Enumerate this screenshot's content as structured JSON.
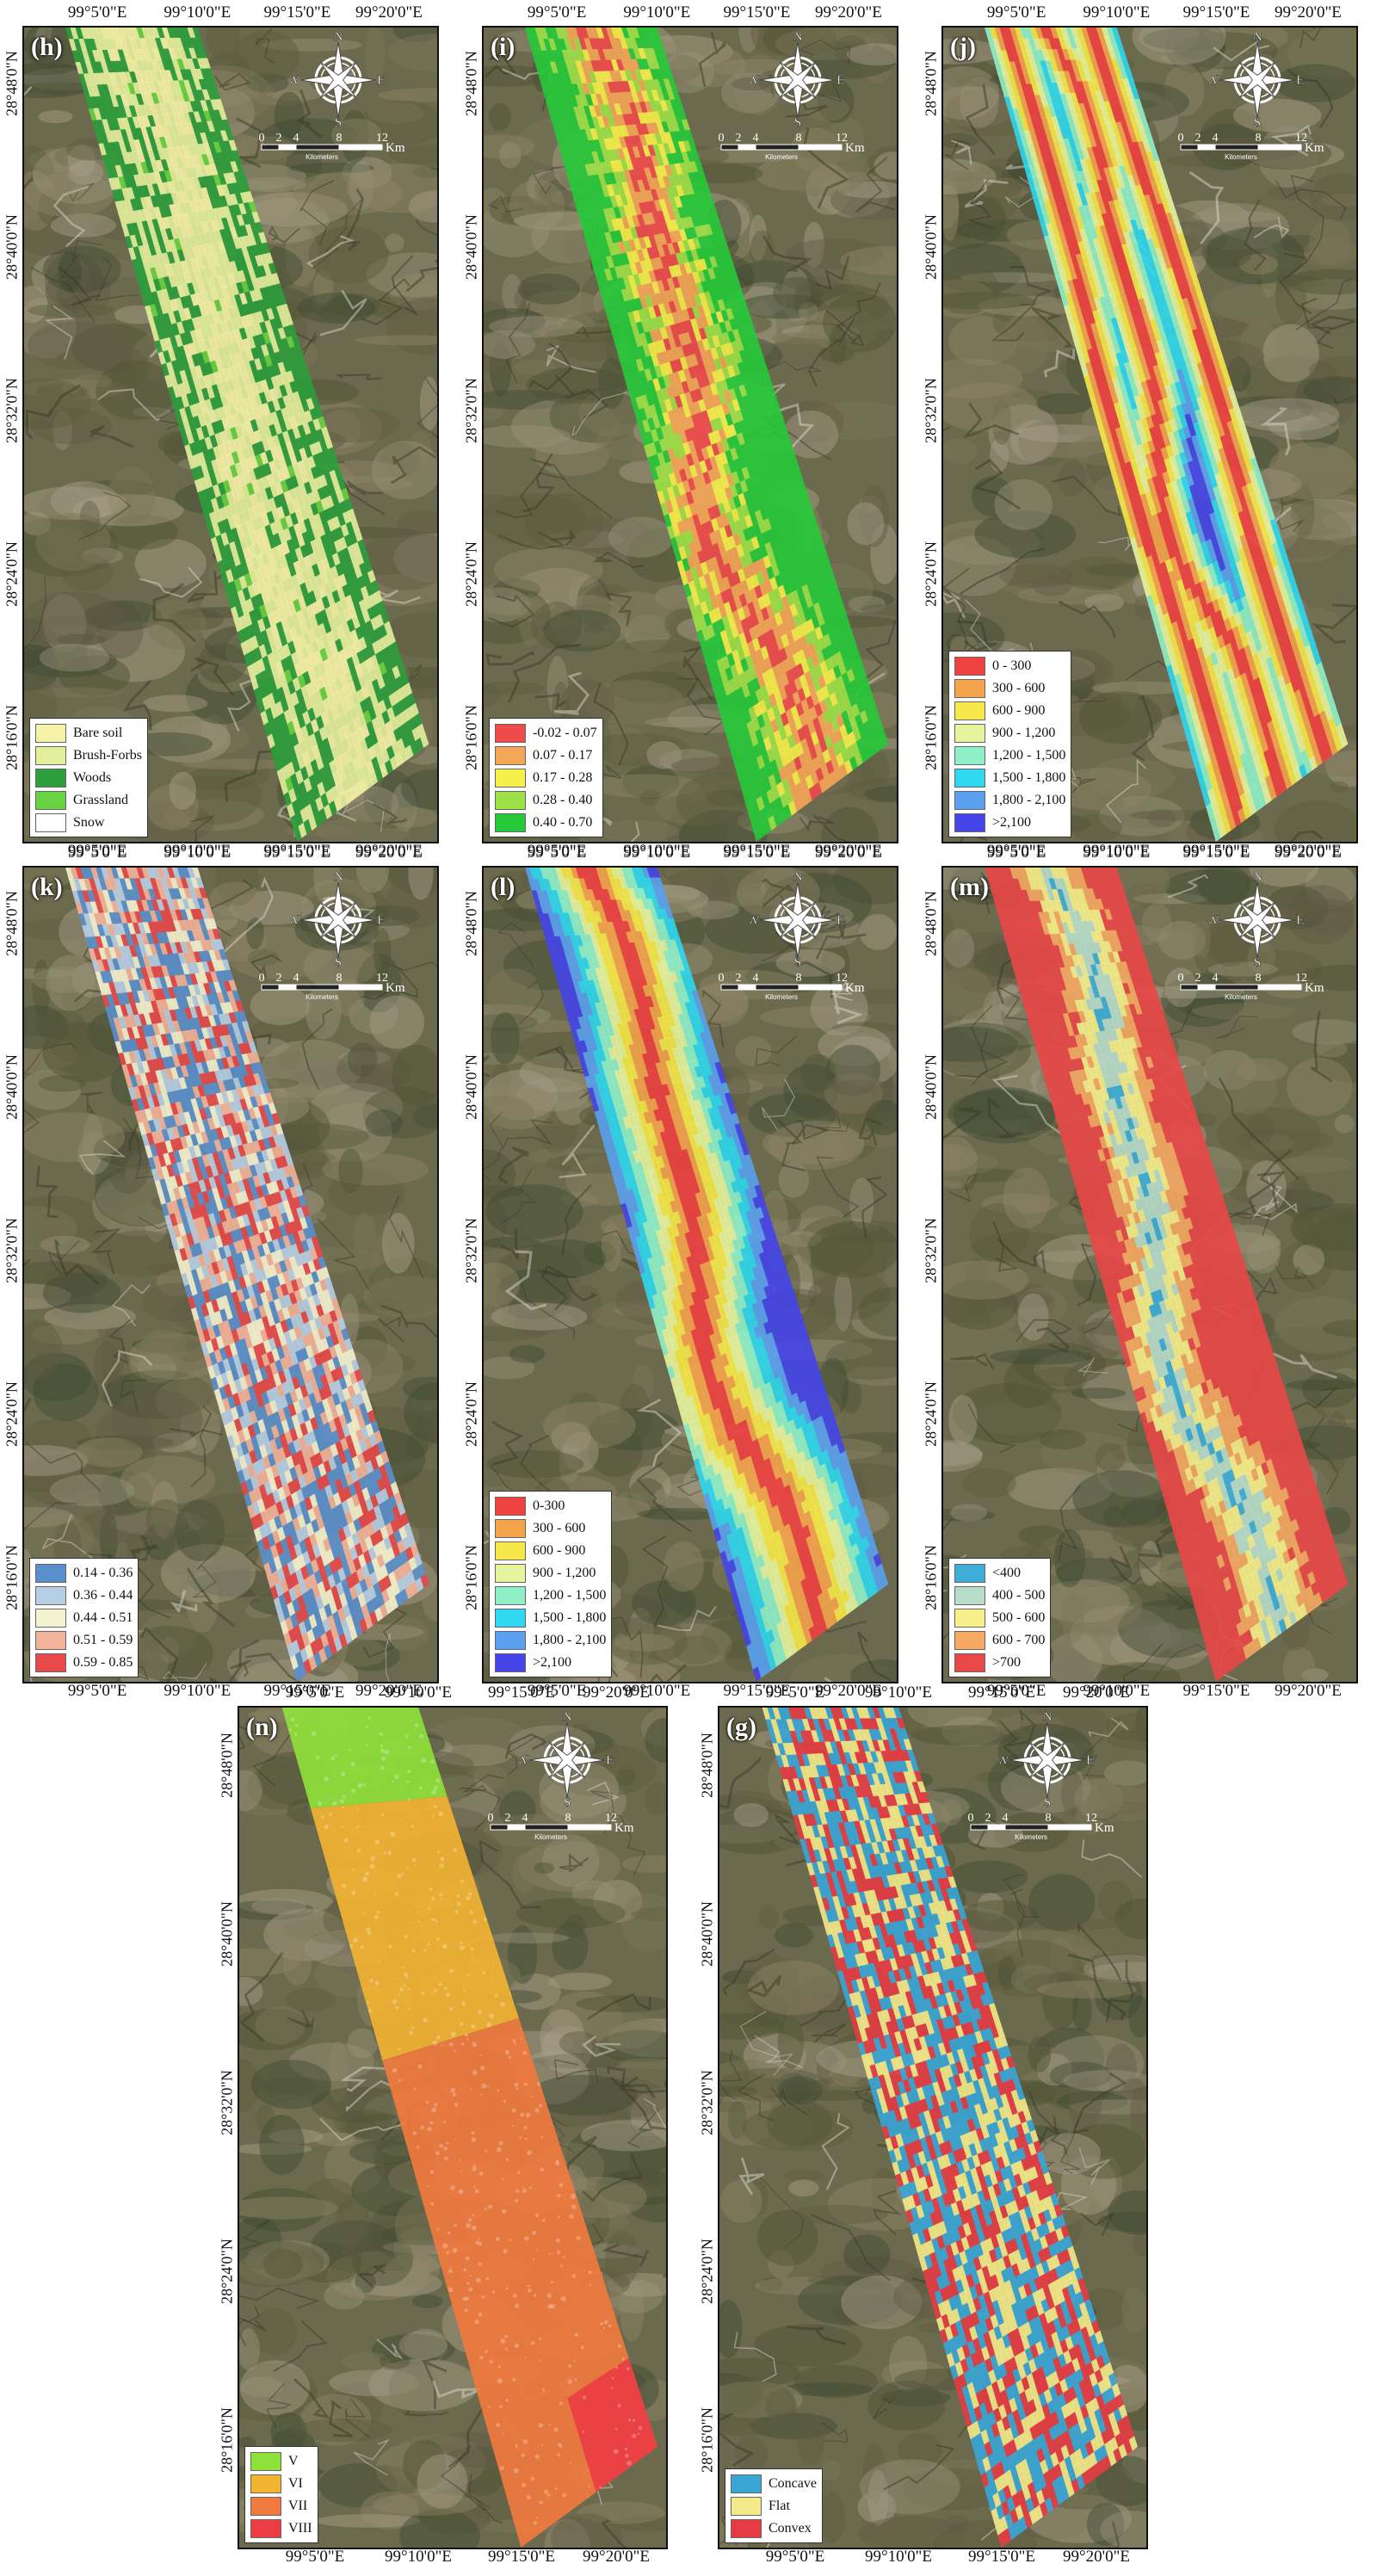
{
  "panels": [
    {
      "id": "h",
      "label": "(h)",
      "top_lon": [
        "99°5'0\"E",
        "99°10'0\"E",
        "99°15'0\"E",
        "99°20'0\"E"
      ],
      "bottom_lon": [
        "99°5'0\"E",
        "99°10'0\"E",
        "99°15'0\"E",
        "99°20'0\"E"
      ],
      "lat": [
        "28°48'0\"N",
        "28°40'0\"N",
        "28°32'0\"N",
        "28°24'0\"N",
        "28°16'0\"N"
      ],
      "legend": [
        {
          "label": "Bare soil",
          "color": "#f6f2a8"
        },
        {
          "label": "Brush-Forbs",
          "color": "#e3ef9c"
        },
        {
          "label": "Woods",
          "color": "#2e9e3c"
        },
        {
          "label": "Grassland",
          "color": "#69d241"
        },
        {
          "label": "Snow",
          "color": "#ffffff"
        }
      ]
    },
    {
      "id": "i",
      "label": "(i)",
      "top_lon": [
        "99°5'0\"E",
        "99°10'0\"E",
        "99°15'0\"E",
        "99°20'0\"E"
      ],
      "bottom_lon": [
        "99°5'0\"E",
        "99°10'0\"E",
        "99°15'0\"E",
        "99°20'0\"E"
      ],
      "lat": [
        "28°48'0\"N",
        "28°40'0\"N",
        "28°32'0\"N",
        "28°24'0\"N",
        "28°16'0\"N"
      ],
      "legend": [
        {
          "label": "-0.02 - 0.07",
          "color": "#ef4b4b"
        },
        {
          "label": "0.07 - 0.17",
          "color": "#f4a657"
        },
        {
          "label": "0.17 - 0.28",
          "color": "#f7ef4a"
        },
        {
          "label": "0.28 - 0.40",
          "color": "#9ee048"
        },
        {
          "label": "0.40 - 0.70",
          "color": "#27c93a"
        }
      ]
    },
    {
      "id": "j",
      "label": "(j)",
      "top_lon": [
        "99°5'0\"E",
        "99°10'0\"E",
        "99°15'0\"E",
        "99°20'0\"E"
      ],
      "bottom_lon": [
        "99°5'0\"E",
        "99°10'0\"E",
        "99°15'0\"E",
        "99°20'0\"E"
      ],
      "lat": [
        "28°48'0\"N",
        "28°40'0\"N",
        "28°32'0\"N",
        "28°24'0\"N",
        "28°16'0\"N"
      ],
      "legend": [
        {
          "label": "0 - 300",
          "color": "#ee4242"
        },
        {
          "label": "300 - 600",
          "color": "#f4a34c"
        },
        {
          "label": "600 - 900",
          "color": "#f6e84a"
        },
        {
          "label": "900 - 1,200",
          "color": "#e6f49e"
        },
        {
          "label": "1,200 - 1,500",
          "color": "#8ff0c8"
        },
        {
          "label": "1,500 - 1,800",
          "color": "#2fd8ee"
        },
        {
          "label": "1,800 - 2,100",
          "color": "#5aa0ee"
        },
        {
          "label": ">2,100",
          "color": "#4545e8"
        }
      ]
    },
    {
      "id": "k",
      "label": "(k)",
      "top_lon": [
        "99°5'0\"E",
        "99°10'0\"E",
        "99°15'0\"E",
        "99°20'0\"E"
      ],
      "bottom_lon": [
        "99°5'0\"E",
        "99°10'0\"E",
        "99°15'0\"E",
        "99°20'0\"E"
      ],
      "lat": [
        "28°48'0\"N",
        "28°40'0\"N",
        "28°32'0\"N",
        "28°24'0\"N",
        "28°16'0\"N"
      ],
      "legend": [
        {
          "label": "0.14 - 0.36",
          "color": "#5b8fcb"
        },
        {
          "label": "0.36 - 0.44",
          "color": "#b7cfe4"
        },
        {
          "label": "0.44 - 0.51",
          "color": "#f5f2d0"
        },
        {
          "label": "0.51 - 0.59",
          "color": "#f3b39a"
        },
        {
          "label": "0.59 - 0.85",
          "color": "#e64a4a"
        }
      ]
    },
    {
      "id": "l",
      "label": "(l)",
      "top_lon": [
        "99°5'0\"E",
        "99°10'0\"E",
        "99°15'0\"E",
        "99°20'0\"E"
      ],
      "bottom_lon": [
        "99°5'0\"E",
        "99°10'0\"E",
        "99°15'0\"E",
        "99°20'0\"E"
      ],
      "lat": [
        "28°48'0\"N",
        "28°40'0\"N",
        "28°32'0\"N",
        "28°24'0\"N",
        "28°16'0\"N"
      ],
      "legend": [
        {
          "label": "0-300",
          "color": "#ee4242"
        },
        {
          "label": "300 - 600",
          "color": "#f4a34c"
        },
        {
          "label": "600 - 900",
          "color": "#f6e84a"
        },
        {
          "label": "900 - 1,200",
          "color": "#e6f49e"
        },
        {
          "label": "1,200 - 1,500",
          "color": "#8ff0c8"
        },
        {
          "label": "1,500 - 1,800",
          "color": "#2fd8ee"
        },
        {
          "label": "1,800 - 2,100",
          "color": "#5aa0ee"
        },
        {
          "label": ">2,100",
          "color": "#4545e8"
        }
      ]
    },
    {
      "id": "m",
      "label": "(m)",
      "top_lon": [
        "99°5'0\"E",
        "99°10'0\"E",
        "99°15'0\"E",
        "99°20'0\"E"
      ],
      "bottom_lon": [
        "99°5'0\"E",
        "99°10'0\"E",
        "99°15'0\"E",
        "99°20'0\"E"
      ],
      "lat": [
        "28°48'0\"N",
        "28°40'0\"N",
        "28°32'0\"N",
        "28°24'0\"N",
        "28°16'0\"N"
      ],
      "legend": [
        {
          "label": "<400",
          "color": "#3eaed8"
        },
        {
          "label": "400 - 500",
          "color": "#b7dcc9"
        },
        {
          "label": "500 - 600",
          "color": "#f6ef8a"
        },
        {
          "label": "600 - 700",
          "color": "#f4a862"
        },
        {
          "label": ">700",
          "color": "#e84848"
        }
      ]
    },
    {
      "id": "n",
      "label": "(n)",
      "top_lon": [
        "99°5'0\"E",
        "99°10'0\"E",
        "99°15'0\"E",
        "99°20'0\"E"
      ],
      "bottom_lon": [
        "99°5'0\"E",
        "99°10'0\"E",
        "99°15'0\"E",
        "99°20'0\"E"
      ],
      "lat": [
        "28°48'0\"N",
        "28°40'0\"N",
        "28°32'0\"N",
        "28°24'0\"N",
        "28°16'0\"N"
      ],
      "legend": [
        {
          "label": "V",
          "color": "#8ee03a"
        },
        {
          "label": "VI",
          "color": "#f2b232"
        },
        {
          "label": "VII",
          "color": "#f07a3e"
        },
        {
          "label": "VIII",
          "color": "#ea3e44"
        }
      ]
    },
    {
      "id": "g",
      "label": "(g)",
      "top_lon": [
        "99°5'0\"E",
        "99°10'0\"E",
        "99°15'0\"E",
        "99°20'0\"E"
      ],
      "bottom_lon": [
        "99°5'0\"E",
        "99°10'0\"E",
        "99°15'0\"E",
        "99°20'0\"E"
      ],
      "lat": [
        "28°48'0\"N",
        "28°40'0\"N",
        "28°32'0\"N",
        "28°24'0\"N",
        "28°16'0\"N"
      ],
      "legend": [
        {
          "label": "Concave",
          "color": "#3aa6d6"
        },
        {
          "label": "Flat",
          "color": "#f4ea8a"
        },
        {
          "label": "Convex",
          "color": "#e53c44"
        }
      ]
    }
  ],
  "compass": {
    "n": "N",
    "s": "S",
    "e": "E",
    "w": "W"
  },
  "scale": {
    "ticks": [
      "0",
      "2",
      "4",
      "8",
      "12"
    ],
    "unit": "Km",
    "sublabel": "Kilometers"
  }
}
